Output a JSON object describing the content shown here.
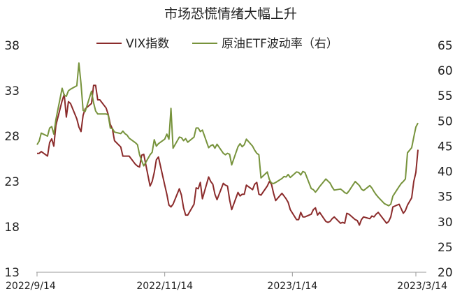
{
  "chart_data": {
    "type": "line",
    "title": "市场恐慌情绪大幅上升",
    "colors": {
      "vix": "#8B2B2B",
      "ovx": "#77933C"
    },
    "left_axis": {
      "ylim": [
        13,
        38
      ],
      "ticks": [
        "13",
        "18",
        "23",
        "28",
        "33",
        "38"
      ]
    },
    "right_axis": {
      "ylim": [
        20,
        65
      ],
      "ticks": [
        "20",
        "25",
        "30",
        "35",
        "40",
        "45",
        "50",
        "55",
        "60",
        "65"
      ]
    },
    "x_ticks": [
      {
        "label": "2022/9/14",
        "day": 0
      },
      {
        "label": "2022/11/14",
        "day": 61
      },
      {
        "label": "2023/1/14",
        "day": 122
      },
      {
        "label": "2023/3/14",
        "day": 181
      }
    ],
    "x_range": [
      0,
      182
    ],
    "series": [
      {
        "name": "VIX指数",
        "axis": "left",
        "points": [
          [
            0,
            26.1
          ],
          [
            1,
            26.1
          ],
          [
            2,
            26.3
          ],
          [
            5,
            25.8
          ],
          [
            6,
            27.3
          ],
          [
            7,
            27.7
          ],
          [
            8,
            26.9
          ],
          [
            9,
            29.2
          ],
          [
            12,
            31.9
          ],
          [
            13,
            32.6
          ],
          [
            14,
            30.1
          ],
          [
            15,
            31.8
          ],
          [
            16,
            31.6
          ],
          [
            19,
            29.9
          ],
          [
            20,
            29.0
          ],
          [
            21,
            28.5
          ],
          [
            22,
            30.3
          ],
          [
            23,
            31.0
          ],
          [
            26,
            31.6
          ],
          [
            27,
            33.6
          ],
          [
            28,
            33.6
          ],
          [
            29,
            32.0
          ],
          [
            30,
            32.0
          ],
          [
            33,
            31.1
          ],
          [
            34,
            30.4
          ],
          [
            35,
            29.3
          ],
          [
            36,
            28.8
          ],
          [
            37,
            27.5
          ],
          [
            40,
            26.8
          ],
          [
            41,
            25.8
          ],
          [
            42,
            25.8
          ],
          [
            43,
            25.8
          ],
          [
            44,
            25.8
          ],
          [
            47,
            24.9
          ],
          [
            48,
            24.7
          ],
          [
            49,
            24.6
          ],
          [
            50,
            25.9
          ],
          [
            51,
            26.0
          ],
          [
            54,
            22.5
          ],
          [
            55,
            23.0
          ],
          [
            56,
            24.0
          ],
          [
            57,
            25.4
          ],
          [
            58,
            25.7
          ],
          [
            61,
            22.6
          ],
          [
            62,
            21.6
          ],
          [
            63,
            20.4
          ],
          [
            64,
            20.2
          ],
          [
            65,
            20.5
          ],
          [
            68,
            22.2
          ],
          [
            69,
            21.5
          ],
          [
            70,
            20.1
          ],
          [
            71,
            19.3
          ],
          [
            72,
            19.3
          ],
          [
            75,
            20.5
          ],
          [
            76,
            22.3
          ],
          [
            77,
            22.2
          ],
          [
            78,
            22.9
          ],
          [
            79,
            21.1
          ],
          [
            82,
            23.5
          ],
          [
            83,
            23.0
          ],
          [
            84,
            22.7
          ],
          [
            85,
            21.6
          ],
          [
            86,
            21.0
          ],
          [
            89,
            22.8
          ],
          [
            90,
            22.6
          ],
          [
            91,
            22.5
          ],
          [
            92,
            21.0
          ],
          [
            93,
            19.9
          ],
          [
            96,
            21.8
          ],
          [
            97,
            21.4
          ],
          [
            98,
            21.6
          ],
          [
            99,
            21.6
          ],
          [
            100,
            22.6
          ],
          [
            103,
            22.1
          ],
          [
            104,
            22.7
          ],
          [
            105,
            22.9
          ],
          [
            106,
            21.6
          ],
          [
            107,
            21.5
          ],
          [
            110,
            22.5
          ],
          [
            111,
            23.0
          ],
          [
            112,
            22.7
          ],
          [
            113,
            21.7
          ],
          [
            114,
            20.9
          ],
          [
            117,
            21.7
          ],
          [
            118,
            21.4
          ],
          [
            119,
            21.1
          ],
          [
            120,
            20.7
          ],
          [
            121,
            19.9
          ],
          [
            124,
            18.8
          ],
          [
            125,
            18.8
          ],
          [
            126,
            19.6
          ],
          [
            127,
            19.1
          ],
          [
            128,
            19.1
          ],
          [
            131,
            19.4
          ],
          [
            132,
            19.9
          ],
          [
            133,
            20.1
          ],
          [
            134,
            19.3
          ],
          [
            135,
            19.6
          ],
          [
            138,
            18.6
          ],
          [
            139,
            18.5
          ],
          [
            140,
            18.6
          ],
          [
            141,
            18.9
          ],
          [
            142,
            19.1
          ],
          [
            145,
            18.4
          ],
          [
            146,
            18.5
          ],
          [
            147,
            18.4
          ],
          [
            148,
            19.5
          ],
          [
            149,
            19.4
          ],
          [
            152,
            18.8
          ],
          [
            153,
            18.7
          ],
          [
            154,
            18.2
          ],
          [
            155,
            18.8
          ],
          [
            156,
            19.1
          ],
          [
            159,
            18.9
          ],
          [
            160,
            19.2
          ],
          [
            161,
            19.1
          ],
          [
            162,
            19.4
          ],
          [
            163,
            19.6
          ],
          [
            166,
            18.7
          ],
          [
            167,
            18.4
          ],
          [
            168,
            18.6
          ],
          [
            169,
            19.1
          ],
          [
            170,
            20.2
          ],
          [
            173,
            20.5
          ],
          [
            174,
            20.0
          ],
          [
            175,
            19.5
          ],
          [
            176,
            19.8
          ],
          [
            177,
            20.4
          ],
          [
            179,
            21.2
          ],
          [
            180,
            23.0
          ],
          [
            181,
            24.0
          ],
          [
            182,
            26.5
          ]
        ]
      },
      {
        "name": "原油ETF波动率（右）",
        "axis": "right",
        "points": [
          [
            0,
            45.3
          ],
          [
            1,
            46.0
          ],
          [
            2,
            47.6
          ],
          [
            5,
            47.0
          ],
          [
            6,
            48.6
          ],
          [
            7,
            48.9
          ],
          [
            8,
            47.4
          ],
          [
            9,
            50.3
          ],
          [
            12,
            56.5
          ],
          [
            13,
            55.1
          ],
          [
            14,
            54.9
          ],
          [
            15,
            56.0
          ],
          [
            16,
            56.3
          ],
          [
            19,
            57.0
          ],
          [
            20,
            61.5
          ],
          [
            21,
            57.4
          ],
          [
            22,
            52.1
          ],
          [
            23,
            51.9
          ],
          [
            26,
            55.9
          ],
          [
            27,
            53.6
          ],
          [
            28,
            52.0
          ],
          [
            29,
            51.4
          ],
          [
            30,
            51.4
          ],
          [
            33,
            51.4
          ],
          [
            34,
            51.2
          ],
          [
            35,
            48.6
          ],
          [
            36,
            48.5
          ],
          [
            37,
            47.8
          ],
          [
            40,
            47.5
          ],
          [
            41,
            48.0
          ],
          [
            42,
            47.5
          ],
          [
            43,
            47.2
          ],
          [
            44,
            46.6
          ],
          [
            47,
            45.7
          ],
          [
            48,
            45.3
          ],
          [
            49,
            43.3
          ],
          [
            50,
            42.1
          ],
          [
            51,
            41.1
          ],
          [
            54,
            43.3
          ],
          [
            55,
            43.8
          ],
          [
            56,
            46.3
          ],
          [
            57,
            45.0
          ],
          [
            58,
            45.5
          ],
          [
            61,
            46.4
          ],
          [
            62,
            47.4
          ],
          [
            63,
            46.4
          ],
          [
            64,
            52.5
          ],
          [
            65,
            44.6
          ],
          [
            68,
            46.8
          ],
          [
            69,
            46.7
          ],
          [
            70,
            46.1
          ],
          [
            71,
            46.5
          ],
          [
            72,
            45.8
          ],
          [
            75,
            46.8
          ],
          [
            76,
            48.6
          ],
          [
            77,
            48.6
          ],
          [
            78,
            47.9
          ],
          [
            79,
            48.2
          ],
          [
            82,
            44.7
          ],
          [
            83,
            45.1
          ],
          [
            84,
            45.3
          ],
          [
            85,
            44.6
          ],
          [
            86,
            45.4
          ],
          [
            89,
            43.6
          ],
          [
            90,
            43.3
          ],
          [
            91,
            43.6
          ],
          [
            92,
            43.4
          ],
          [
            93,
            41.3
          ],
          [
            96,
            44.9
          ],
          [
            97,
            45.5
          ],
          [
            98,
            44.9
          ],
          [
            99,
            45.3
          ],
          [
            100,
            46.4
          ],
          [
            103,
            45.0
          ],
          [
            104,
            44.2
          ],
          [
            105,
            43.6
          ],
          [
            106,
            43.3
          ],
          [
            107,
            38.7
          ],
          [
            110,
            39.9
          ],
          [
            111,
            38.4
          ],
          [
            112,
            37.7
          ],
          [
            113,
            37.6
          ],
          [
            114,
            37.8
          ],
          [
            117,
            38.6
          ],
          [
            118,
            39.0
          ],
          [
            119,
            38.9
          ],
          [
            120,
            39.4
          ],
          [
            121,
            38.8
          ],
          [
            124,
            39.9
          ],
          [
            125,
            39.8
          ],
          [
            126,
            39.3
          ],
          [
            127,
            40.0
          ],
          [
            128,
            39.8
          ],
          [
            131,
            36.6
          ],
          [
            132,
            36.4
          ],
          [
            133,
            35.9
          ],
          [
            134,
            36.4
          ],
          [
            135,
            37.0
          ],
          [
            138,
            38.5
          ],
          [
            139,
            38.1
          ],
          [
            140,
            37.7
          ],
          [
            141,
            36.9
          ],
          [
            142,
            36.3
          ],
          [
            145,
            36.5
          ],
          [
            146,
            36.2
          ],
          [
            147,
            35.8
          ],
          [
            148,
            35.6
          ],
          [
            149,
            36.1
          ],
          [
            152,
            38.0
          ],
          [
            153,
            37.6
          ],
          [
            154,
            37.2
          ],
          [
            155,
            36.5
          ],
          [
            156,
            36.2
          ],
          [
            159,
            37.2
          ],
          [
            160,
            36.7
          ],
          [
            161,
            36.0
          ],
          [
            162,
            35.4
          ],
          [
            163,
            34.9
          ],
          [
            166,
            33.6
          ],
          [
            167,
            33.4
          ],
          [
            168,
            33.2
          ],
          [
            169,
            33.5
          ],
          [
            170,
            35.1
          ],
          [
            173,
            37.0
          ],
          [
            174,
            37.6
          ],
          [
            175,
            38.0
          ],
          [
            176,
            38.5
          ],
          [
            177,
            43.7
          ],
          [
            179,
            44.7
          ],
          [
            180,
            46.8
          ],
          [
            181,
            48.8
          ],
          [
            182,
            49.6
          ]
        ]
      }
    ]
  }
}
